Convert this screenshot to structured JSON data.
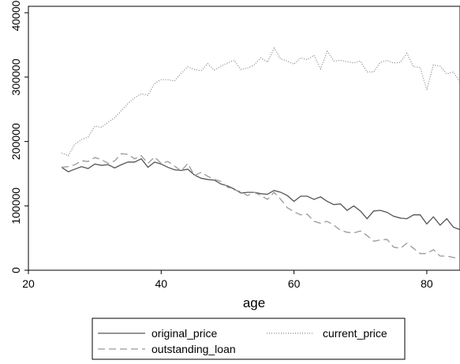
{
  "chart_data": {
    "type": "line",
    "title": "",
    "xlabel": "age",
    "ylabel": "",
    "xlim": [
      20,
      85
    ],
    "ylim": [
      0,
      410000
    ],
    "x_ticks": [
      20,
      40,
      60,
      80
    ],
    "y_ticks": [
      0,
      100000,
      200000,
      300000,
      400000
    ],
    "x_tick_labels": [
      "20",
      "40",
      "60",
      "80"
    ],
    "y_tick_labels": [
      "0",
      "100000",
      "200000",
      "300000",
      "400000"
    ],
    "grid": false,
    "legend_position": "bottom",
    "x": [
      25,
      26,
      27,
      28,
      29,
      30,
      31,
      32,
      33,
      34,
      35,
      36,
      37,
      38,
      39,
      40,
      41,
      42,
      43,
      44,
      45,
      46,
      47,
      48,
      49,
      50,
      51,
      52,
      53,
      54,
      55,
      56,
      57,
      58,
      59,
      60,
      61,
      62,
      63,
      64,
      65,
      66,
      67,
      68,
      69,
      70,
      71,
      72,
      73,
      74,
      75,
      76,
      77,
      78,
      79,
      80,
      81,
      82,
      83,
      84,
      85
    ],
    "series": [
      {
        "name": "original_price",
        "style": "solid",
        "color": "#555555",
        "values": [
          160000,
          153000,
          157000,
          161000,
          158000,
          165000,
          163000,
          164000,
          159000,
          164000,
          168000,
          168000,
          173000,
          160000,
          168000,
          165000,
          160000,
          156000,
          155000,
          157000,
          148000,
          143000,
          141000,
          140000,
          134000,
          131000,
          126000,
          120000,
          121000,
          121000,
          119000,
          118000,
          124000,
          121000,
          116000,
          107000,
          115000,
          115000,
          110000,
          114000,
          107000,
          102000,
          103000,
          93000,
          100000,
          92000,
          80000,
          92000,
          93000,
          90000,
          84000,
          81000,
          80000,
          86000,
          86000,
          72000,
          83000,
          70000,
          80000,
          67000,
          63000
        ]
      },
      {
        "name": "current_price",
        "style": "dotted",
        "color": "#888888",
        "values": [
          182000,
          178000,
          196000,
          203000,
          207000,
          224000,
          222000,
          230000,
          237000,
          248000,
          259000,
          268000,
          274000,
          272000,
          290000,
          296000,
          296000,
          294000,
          306000,
          316000,
          312000,
          310000,
          321000,
          311000,
          317000,
          322000,
          326000,
          312000,
          314000,
          319000,
          330000,
          323000,
          345000,
          328000,
          325000,
          320000,
          330000,
          327000,
          334000,
          313000,
          340000,
          325000,
          326000,
          324000,
          322000,
          325000,
          308000,
          308000,
          323000,
          326000,
          322000,
          323000,
          337000,
          316000,
          315000,
          280000,
          319000,
          317000,
          305000,
          308000,
          292000
        ]
      },
      {
        "name": "outstanding_loan",
        "style": "dashed",
        "color": "#999999",
        "values": [
          160000,
          161000,
          164000,
          170000,
          169000,
          175000,
          172000,
          166000,
          170000,
          181000,
          180000,
          173000,
          178000,
          166000,
          176000,
          166000,
          169000,
          162000,
          154000,
          166000,
          147000,
          152000,
          146000,
          141000,
          138000,
          129000,
          125000,
          122000,
          116000,
          121000,
          116000,
          110000,
          121000,
          110000,
          97000,
          91000,
          86000,
          87000,
          76000,
          73000,
          76000,
          70000,
          62000,
          59000,
          58000,
          61000,
          54000,
          45000,
          47000,
          48000,
          36000,
          34000,
          42000,
          34000,
          26000,
          26000,
          32000,
          22000,
          22000,
          20000,
          17000
        ]
      }
    ],
    "legend": [
      {
        "label": "original_price",
        "series": "original_price"
      },
      {
        "label": "current_price",
        "series": "current_price"
      },
      {
        "label": "outstanding_loan",
        "series": "outstanding_loan"
      }
    ]
  }
}
